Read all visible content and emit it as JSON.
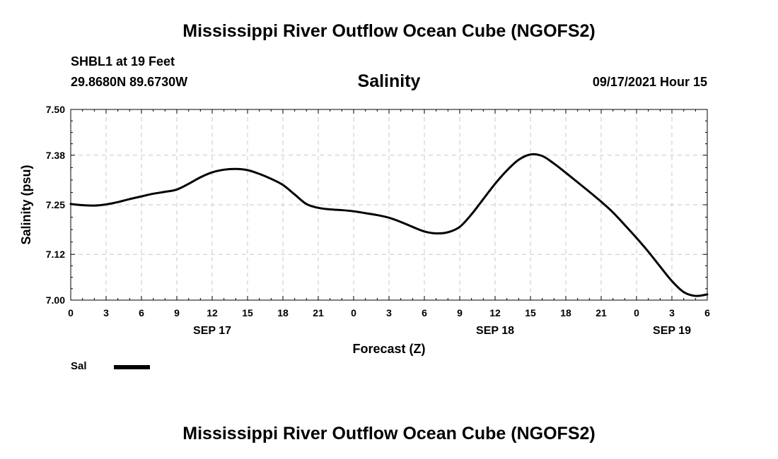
{
  "header": {
    "title": "Mississippi River Outflow Ocean Cube (NGOFS2)",
    "station_name": "SHBL1 at 19 Feet",
    "station_coords": "29.8680N  89.6730W",
    "issue_time": "09/17/2021 Hour 15"
  },
  "footer": {
    "title": "Mississippi River Outflow Ocean Cube (NGOFS2)"
  },
  "chart_data": {
    "type": "line",
    "title": "Salinity",
    "xlabel": "Forecast (Z)",
    "ylabel": "Salinity (psu)",
    "xlim": [
      0,
      54
    ],
    "ylim": [
      7.0,
      7.5
    ],
    "y_ticks": [
      7.0,
      7.12,
      7.25,
      7.38,
      7.5
    ],
    "y_tick_labels": [
      "7.00",
      "7.12",
      "7.25",
      "7.38",
      "7.50"
    ],
    "x_ticks": [
      0,
      3,
      6,
      9,
      12,
      15,
      18,
      21,
      24,
      27,
      30,
      33,
      36,
      39,
      42,
      45,
      48,
      51,
      54
    ],
    "x_tick_labels": [
      "0",
      "3",
      "6",
      "9",
      "12",
      "15",
      "18",
      "21",
      "0",
      "3",
      "6",
      "9",
      "12",
      "15",
      "18",
      "21",
      "0",
      "3",
      "6"
    ],
    "date_labels": [
      {
        "x": 12,
        "label": "SEP 17"
      },
      {
        "x": 36,
        "label": "SEP 18"
      },
      {
        "x": 51,
        "label": "SEP 19"
      }
    ],
    "grid": true,
    "legend": {
      "position": "bottom-left",
      "entries": [
        "Sal"
      ]
    },
    "series": [
      {
        "name": "Sal",
        "color": "#000000",
        "x": [
          0,
          1,
          2,
          3,
          4,
          5,
          6,
          7,
          8,
          9,
          10,
          11,
          12,
          13,
          14,
          15,
          16,
          17,
          18,
          19,
          20,
          21,
          22,
          23,
          24,
          25,
          26,
          27,
          28,
          29,
          30,
          31,
          32,
          33,
          34,
          35,
          36,
          37,
          38,
          39,
          40,
          41,
          42,
          43,
          44,
          45,
          46,
          47,
          48,
          49,
          50,
          51,
          52,
          53,
          54
        ],
        "values": [
          7.252,
          7.249,
          7.248,
          7.251,
          7.257,
          7.265,
          7.272,
          7.279,
          7.284,
          7.29,
          7.305,
          7.322,
          7.335,
          7.342,
          7.344,
          7.341,
          7.331,
          7.318,
          7.302,
          7.277,
          7.252,
          7.242,
          7.238,
          7.236,
          7.233,
          7.228,
          7.223,
          7.216,
          7.205,
          7.192,
          7.18,
          7.175,
          7.178,
          7.192,
          7.225,
          7.265,
          7.305,
          7.34,
          7.368,
          7.382,
          7.378,
          7.358,
          7.334,
          7.309,
          7.284,
          7.258,
          7.23,
          7.197,
          7.163,
          7.127,
          7.088,
          7.05,
          7.021,
          7.011,
          7.015
        ]
      }
    ]
  }
}
